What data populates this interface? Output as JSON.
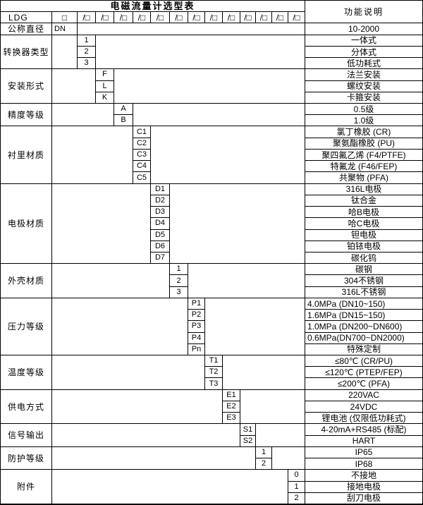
{
  "table": {
    "title": "电磁流量计选型表",
    "desc_header": "功能说明",
    "model_prefix": "LDG",
    "box_symbol": "□",
    "slash_box_symbol": "/□",
    "slash_box_count": 13,
    "diameter": {
      "label": "公称直径",
      "code": "DN",
      "desc": "10-2000"
    },
    "sections": [
      {
        "label": "转换器类型",
        "rows": [
          {
            "code": "1",
            "desc": "一体式"
          },
          {
            "code": "2",
            "desc": "分体式"
          },
          {
            "code": "3",
            "desc": "低功耗式"
          }
        ]
      },
      {
        "label": "安装形式",
        "rows": [
          {
            "code": "F",
            "desc": "法兰安装"
          },
          {
            "code": "L",
            "desc": "螺纹安装"
          },
          {
            "code": "K",
            "desc": "卡箍安装"
          }
        ]
      },
      {
        "label": "精度等级",
        "rows": [
          {
            "code": "A",
            "desc": "0.5级"
          },
          {
            "code": "B",
            "desc": "1.0级"
          }
        ]
      },
      {
        "label": "衬里材质",
        "rows": [
          {
            "code": "C1",
            "desc": "氯丁橡胶 (CR)"
          },
          {
            "code": "C2",
            "desc": "聚氨酯橡胶 (PU)"
          },
          {
            "code": "C3",
            "desc": "聚四氟乙烯 (F4/PTFE)"
          },
          {
            "code": "C4",
            "desc": "特氟龙 (F46/FEP)"
          },
          {
            "code": "C5",
            "desc": "共聚物 (PFA)"
          }
        ]
      },
      {
        "label": "电极材质",
        "rows": [
          {
            "code": "D1",
            "desc": "316L电极"
          },
          {
            "code": "D2",
            "desc": "钛合金"
          },
          {
            "code": "D3",
            "desc": "哈B电极"
          },
          {
            "code": "D4",
            "desc": "哈C电极"
          },
          {
            "code": "D5",
            "desc": "钽电极"
          },
          {
            "code": "D6",
            "desc": "铂铱电极"
          },
          {
            "code": "D7",
            "desc": "碳化钨"
          }
        ]
      },
      {
        "label": "外壳材质",
        "rows": [
          {
            "code": "1",
            "desc": "碳钢"
          },
          {
            "code": "2",
            "desc": "304不锈钢"
          },
          {
            "code": "3",
            "desc": "316L不锈钢"
          }
        ]
      },
      {
        "label": "压力等级",
        "rows": [
          {
            "code": "P1",
            "desc": "4.0MPa (DN10~150)"
          },
          {
            "code": "P2",
            "desc": "1.6MPa (DN15~150)"
          },
          {
            "code": "P3",
            "desc": "1.0MPa (DN200~DN600)"
          },
          {
            "code": "P4",
            "desc": "0.6MPa(DN700~DN2000)"
          },
          {
            "code": "Pn",
            "desc": "特殊定制"
          }
        ]
      },
      {
        "label": "温度等级",
        "rows": [
          {
            "code": "T1",
            "desc": "≤80℃ (CR/PU)"
          },
          {
            "code": "T2",
            "desc": "≤120℃ (PTEP/FEP)"
          },
          {
            "code": "T3",
            "desc": "≤200℃ (PFA)"
          }
        ]
      },
      {
        "label": "供电方式",
        "rows": [
          {
            "code": "E1",
            "desc": "220VAC"
          },
          {
            "code": "E2",
            "desc": "24VDC"
          },
          {
            "code": "E3",
            "desc": "锂电池 (仅限低功耗式)"
          }
        ]
      },
      {
        "label": "信号输出",
        "rows": [
          {
            "code": "S1",
            "desc": "4-20mA+RS485 (标配)"
          },
          {
            "code": "S2",
            "desc": "HART"
          }
        ]
      },
      {
        "label": "防护等级",
        "rows": [
          {
            "code": "1",
            "desc": "IP65"
          },
          {
            "code": "2",
            "desc": "IP68"
          }
        ]
      },
      {
        "label": "附件",
        "rows": [
          {
            "code": "0",
            "desc": "不接地"
          },
          {
            "code": "1",
            "desc": "接地电极"
          },
          {
            "code": "2",
            "desc": "刮刀电极"
          }
        ]
      }
    ]
  },
  "colors": {
    "background": "#ffffff",
    "border": "#000000",
    "text": "#000000"
  }
}
